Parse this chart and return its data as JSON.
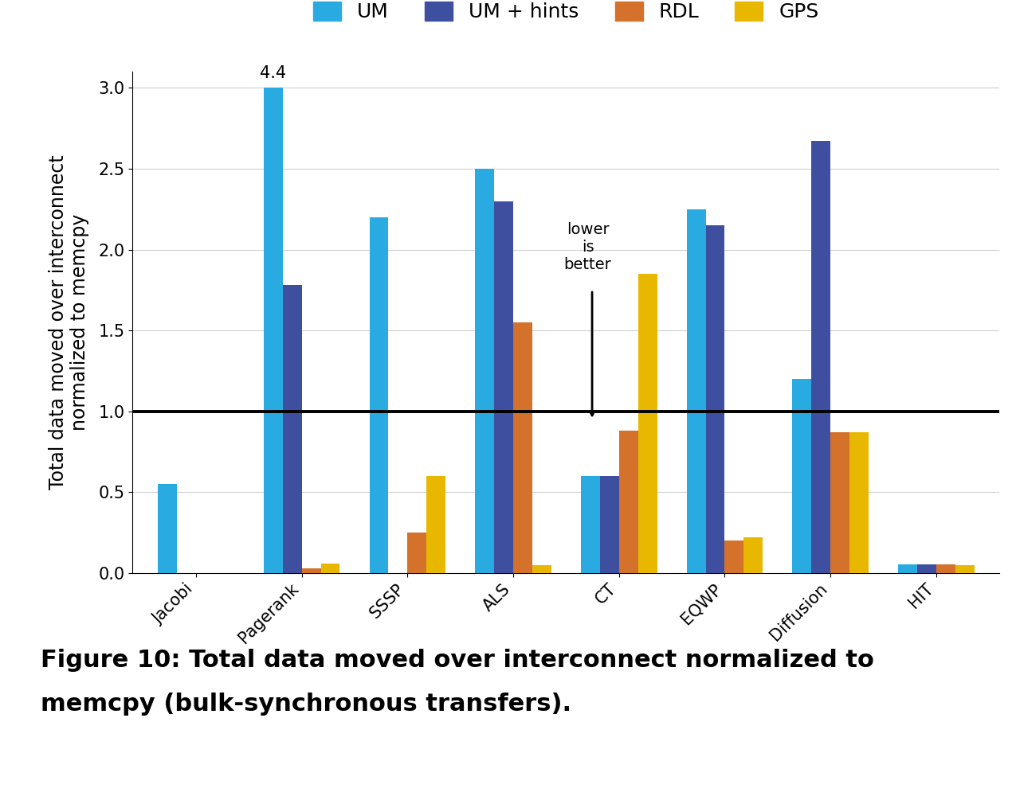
{
  "categories": [
    "Jacobi",
    "Pagerank",
    "SSSP",
    "ALS",
    "CT",
    "EQWP",
    "Diffusion",
    "HIT"
  ],
  "series": {
    "UM": [
      0.55,
      3.0,
      2.2,
      2.5,
      0.6,
      2.25,
      1.2,
      0.055
    ],
    "UM_hints": [
      0.0,
      1.78,
      0.0,
      2.3,
      0.6,
      2.15,
      2.67,
      0.055
    ],
    "RDL": [
      0.0,
      0.03,
      0.25,
      1.55,
      0.88,
      0.2,
      0.87,
      0.055
    ],
    "GPS": [
      0.0,
      0.06,
      0.6,
      0.05,
      1.85,
      0.22,
      0.87,
      0.05
    ]
  },
  "series_names": [
    "UM",
    "UM + hints",
    "RDL",
    "GPS"
  ],
  "series_keys": [
    "UM",
    "UM_hints",
    "RDL",
    "GPS"
  ],
  "colors": {
    "UM": "#29ABE2",
    "UM_hints": "#3F4FA0",
    "RDL": "#D4712A",
    "GPS": "#E8B800"
  },
  "ylim": [
    0,
    3.1
  ],
  "yticks": [
    0,
    0.5,
    1,
    1.5,
    2,
    2.5,
    3
  ],
  "hline_y": 1.0,
  "annotation_text": "4.4",
  "annotation_bar": "Pagerank",
  "ylabel": "Total data moved over interconnect\nnormalized to memcpy",
  "arrow_text": "lower\nis\nbetter",
  "caption_line1": "Figure 10: Total data moved over interconnect normalized to",
  "caption_line2": "memcpy (bulk-synchronous transfers).",
  "bar_width": 0.18,
  "legend_position": "upper center",
  "background_color": "#ffffff",
  "axis_fontsize": 17,
  "tick_fontsize": 15,
  "legend_fontsize": 18,
  "caption_fontsize": 22,
  "annot_fontsize": 15
}
